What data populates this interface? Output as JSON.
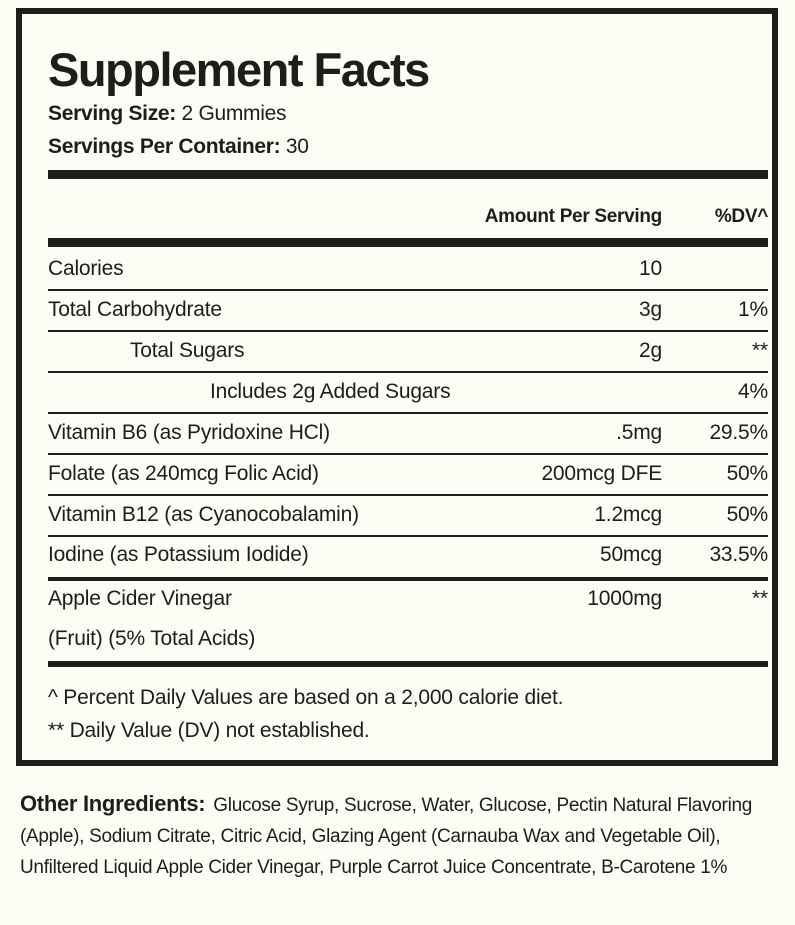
{
  "title": "Supplement Facts",
  "serving_size": {
    "label": "Serving Size:",
    "value": "2 Gummies"
  },
  "servings_per_container": {
    "label": "Servings Per Container:",
    "value": "30"
  },
  "header": {
    "amount": "Amount Per Serving",
    "dv": "%DV^"
  },
  "rows": [
    {
      "name": "Calories",
      "amount": "10",
      "dv": ""
    },
    {
      "name": "Total Carbohydrate",
      "amount": "3g",
      "dv": "1%"
    },
    {
      "name": "Total Sugars",
      "amount": "2g",
      "dv": "**"
    },
    {
      "name": "Includes 2g Added Sugars",
      "amount": "",
      "dv": "4%"
    },
    {
      "name": "Vitamin B6 (as Pyridoxine HCl)",
      "amount": ".5mg",
      "dv": "29.5%"
    },
    {
      "name": "Folate (as 240mcg Folic Acid)",
      "amount": "200mcg DFE",
      "dv": "50%"
    },
    {
      "name": "Vitamin B12 (as Cyanocobalamin)",
      "amount": "1.2mcg",
      "dv": "50%"
    },
    {
      "name": "Iodine (as Potassium Iodide)",
      "amount": "50mcg",
      "dv": "33.5%"
    },
    {
      "name": "Apple Cider Vinegar",
      "name2": "(Fruit) (5% Total Acids)",
      "amount": "1000mg",
      "dv": "**"
    }
  ],
  "footnotes": [
    "^ Percent Daily Values are based on a 2,000 calorie diet.",
    "** Daily Value (DV) not established."
  ],
  "other_ingredients": {
    "label": "Other Ingredients:",
    "text": "Glucose Syrup, Sucrose, Water, Glucose, Pectin Natural Flavoring (Apple), Sodium Citrate, Citric Acid, Glazing Agent (Carnauba Wax and Vegetable Oil), Unfiltered Liquid Apple Cider Vinegar, Purple Carrot Juice Concentrate, B-Carotene 1%"
  }
}
